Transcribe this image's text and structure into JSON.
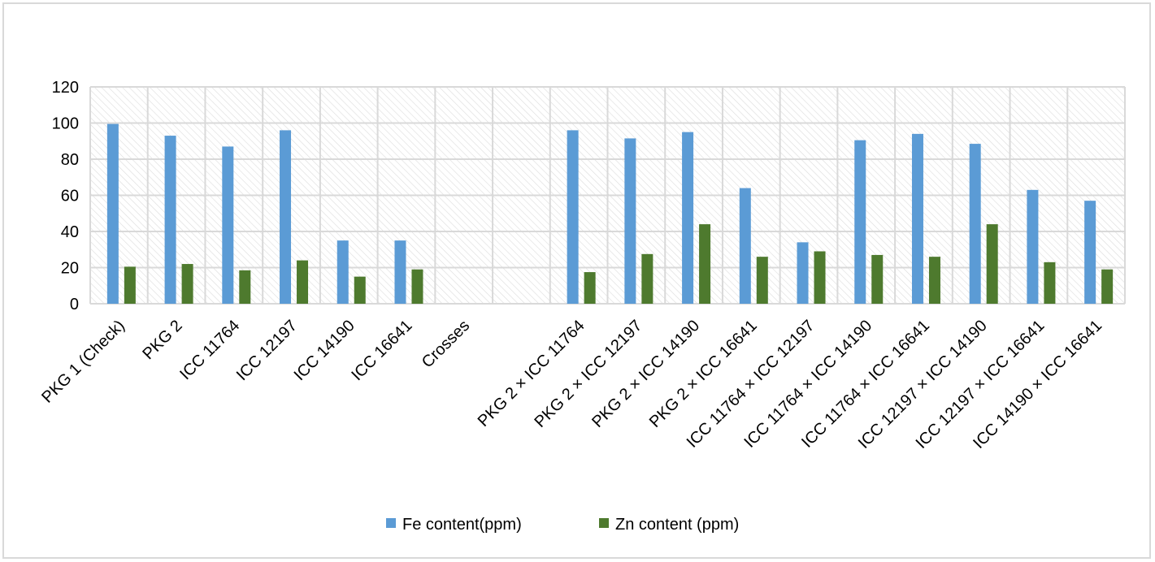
{
  "chart_data": {
    "type": "bar",
    "categories": [
      "PKG 1 (Check)",
      "PKG 2",
      "ICC 11764",
      "ICC 12197",
      "ICC 14190",
      "ICC 16641",
      "Crosses",
      "",
      "PKG 2 × ICC 11764",
      "PKG 2 × ICC 12197",
      "PKG 2 × ICC 14190",
      "PKG 2 × ICC 16641",
      "ICC 11764 × ICC 12197",
      "ICC 11764 × ICC 14190",
      "ICC 11764 × ICC 16641",
      "ICC 12197 × ICC 14190",
      "ICC 12197 × ICC 16641",
      "ICC 14190 × ICC 16641"
    ],
    "series": [
      {
        "name": "Fe content(ppm)",
        "color": "#5b9bd5",
        "values": [
          99.5,
          93,
          87,
          96,
          35,
          35,
          null,
          null,
          96,
          91.5,
          95,
          64,
          34,
          90.5,
          94,
          88.5,
          63,
          57
        ]
      },
      {
        "name": "Zn content (ppm)",
        "color": "#4e7a2e",
        "values": [
          20.5,
          22,
          18.5,
          24,
          15,
          19,
          null,
          null,
          17.5,
          27.5,
          44,
          26,
          29,
          27,
          26,
          44,
          23,
          19
        ]
      }
    ],
    "yticks": [
      "0",
      "20",
      "40",
      "60",
      "80",
      "100",
      "120"
    ],
    "ylim": [
      0,
      120
    ],
    "grid": true,
    "legend_position": "bottom"
  }
}
